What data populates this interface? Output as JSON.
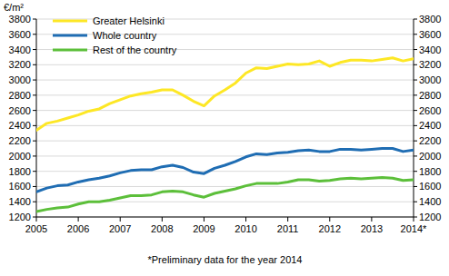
{
  "chart_data": {
    "type": "line",
    "y_label": "€/m²",
    "footnote": "*Preliminary data for the year 2014",
    "categories": [
      "2005",
      null,
      null,
      null,
      "2006",
      null,
      null,
      null,
      "2007",
      null,
      null,
      null,
      "2008",
      null,
      null,
      null,
      "2009",
      null,
      null,
      null,
      "2010",
      null,
      null,
      null,
      "2011",
      null,
      null,
      null,
      "2012",
      null,
      null,
      null,
      "2013",
      null,
      null,
      null,
      "2014*"
    ],
    "series": [
      {
        "name": "Greater Helsinki",
        "color": "#fde725",
        "values": [
          2340,
          2430,
          2460,
          2500,
          2540,
          2590,
          2620,
          2690,
          2740,
          2790,
          2820,
          2840,
          2870,
          2870,
          2800,
          2720,
          2660,
          2790,
          2870,
          2960,
          3090,
          3160,
          3150,
          3180,
          3210,
          3200,
          3210,
          3250,
          3180,
          3230,
          3260,
          3260,
          3250,
          3270,
          3290,
          3250,
          3280
        ]
      },
      {
        "name": "Whole country",
        "color": "#1f6db3",
        "values": [
          1530,
          1580,
          1610,
          1620,
          1660,
          1690,
          1710,
          1740,
          1780,
          1810,
          1820,
          1820,
          1860,
          1880,
          1850,
          1790,
          1770,
          1840,
          1880,
          1930,
          1990,
          2030,
          2020,
          2040,
          2050,
          2070,
          2080,
          2060,
          2060,
          2090,
          2090,
          2080,
          2090,
          2100,
          2100,
          2060,
          2080
        ]
      },
      {
        "name": "Rest of the country",
        "color": "#5cbf3a",
        "values": [
          1270,
          1300,
          1320,
          1330,
          1370,
          1400,
          1400,
          1420,
          1450,
          1480,
          1480,
          1490,
          1530,
          1540,
          1530,
          1490,
          1460,
          1510,
          1540,
          1570,
          1610,
          1640,
          1640,
          1640,
          1660,
          1690,
          1690,
          1670,
          1680,
          1700,
          1710,
          1700,
          1710,
          1720,
          1710,
          1680,
          1690
        ]
      }
    ],
    "ylim": [
      1200,
      3800
    ],
    "yticks": [
      1200,
      1400,
      1600,
      1800,
      2000,
      2200,
      2400,
      2600,
      2800,
      3000,
      3200,
      3400,
      3600,
      3800
    ],
    "grid": true,
    "legend": "upper left"
  }
}
